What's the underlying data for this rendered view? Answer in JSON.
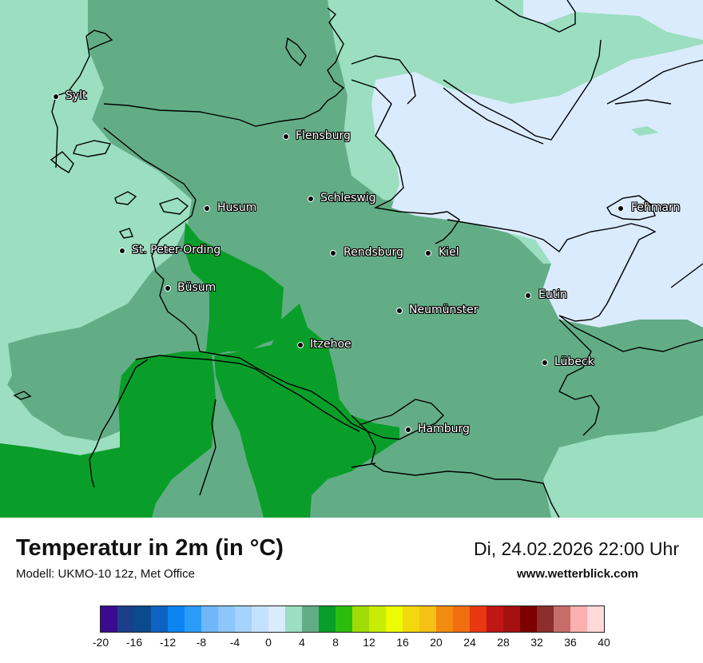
{
  "title": "Temperatur in 2m (in °C)",
  "model": "Modell: UKMO-10 12z, Met Office",
  "datetime": "Di, 24.02.2026 22:00 Uhr",
  "website": "www.wetterblick.com",
  "cities": [
    {
      "name": "Sylt"
    },
    {
      "name": "Flensburg"
    },
    {
      "name": "Husum"
    },
    {
      "name": "Schleswig"
    },
    {
      "name": "Fehmarn"
    },
    {
      "name": "St. Peter-Ording"
    },
    {
      "name": "Rendsburg"
    },
    {
      "name": "Kiel"
    },
    {
      "name": "Büsum"
    },
    {
      "name": "Eutin"
    },
    {
      "name": "Neumünster"
    },
    {
      "name": "Itzehoe"
    },
    {
      "name": "Lübeck"
    },
    {
      "name": "Hamburg"
    }
  ],
  "colorbar": {
    "colors": [
      "#3b0a8f",
      "#1b3f8a",
      "#0b4a8c",
      "#0d62c2",
      "#0a84f0",
      "#2a9bf7",
      "#6fb7f9",
      "#8cc6fa",
      "#a6d3fb",
      "#c4e1fc",
      "#d9ebfd",
      "#9bdec0",
      "#63ad86",
      "#089e29",
      "#2bbd0d",
      "#9fdb07",
      "#c8ec05",
      "#eefb02",
      "#f2d80e",
      "#f6c014",
      "#f38b10",
      "#f06d10",
      "#e8380f",
      "#bf1616",
      "#a41111",
      "#7d0101",
      "#8c2e2b",
      "#c76e6a",
      "#f9b0ae",
      "#ffd8d8"
    ],
    "ticks": [
      "-20",
      "-16",
      "-12",
      "-8",
      "-4",
      "0",
      "4",
      "8",
      "12",
      "16",
      "20",
      "24",
      "28",
      "32",
      "36",
      "40"
    ]
  },
  "legend_colors": {
    "cool_green": "#9bdec0",
    "mid_green": "#63ad86",
    "warm_green": "#089e29",
    "light_blue": "#d9ebfd"
  }
}
